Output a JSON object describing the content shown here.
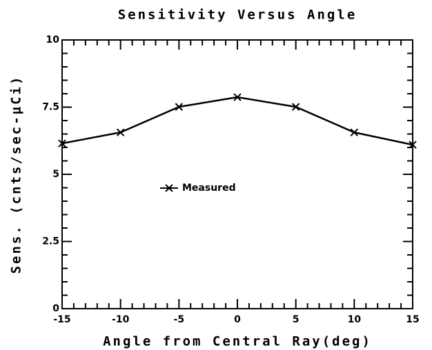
{
  "chart_data": {
    "type": "line",
    "title": "Sensitivity Versus Angle",
    "x_label": "Angle from Central Ray(deg)",
    "y_label": "Sens. (cnts/sec-μCi)",
    "x": [
      -15,
      -10,
      -5,
      0,
      5,
      10,
      15
    ],
    "series": [
      {
        "name": "Measured",
        "color": "#000000",
        "values": [
          6.15,
          6.56,
          7.51,
          7.87,
          7.51,
          6.56,
          6.1
        ]
      }
    ],
    "xlim": [
      -15,
      15
    ],
    "xticks": [
      -15,
      -10,
      -5,
      0,
      5,
      10,
      15
    ],
    "ylim": [
      0,
      10
    ],
    "yticks": [
      0,
      2.5,
      5,
      7.5,
      10
    ],
    "minor_divisions": 5,
    "grid": false,
    "legend": "left"
  }
}
